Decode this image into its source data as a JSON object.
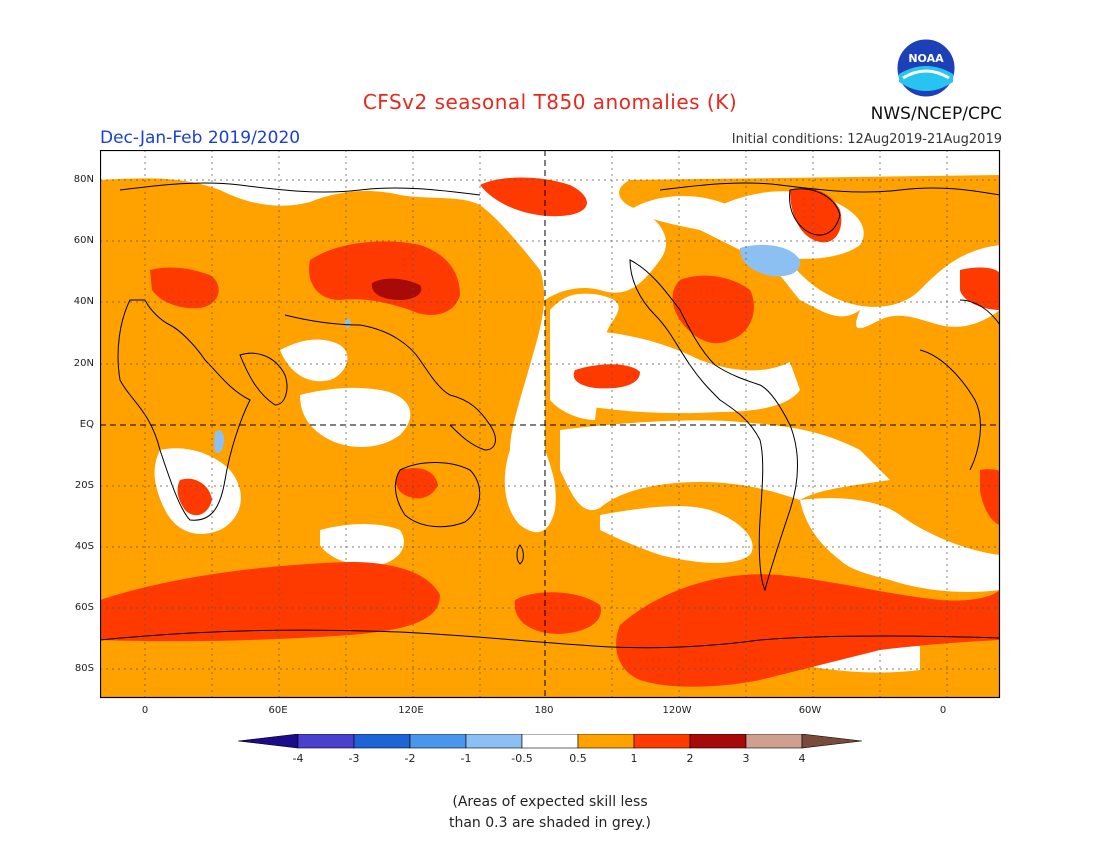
{
  "header": {
    "title": "CFSv2 seasonal T850 anomalies (K)",
    "period": "Dec-Jan-Feb 2019/2020",
    "initial_conditions": "Initial conditions: 12Aug2019-21Aug2019",
    "agency": "NWS/NCEP/CPC",
    "logo_text": "NOAA"
  },
  "axes": {
    "latitude_labels": [
      "80N",
      "60N",
      "40N",
      "20N",
      "EQ",
      "20S",
      "40S",
      "60S",
      "80S"
    ],
    "longitude_labels": [
      "0",
      "60E",
      "120E",
      "180",
      "120W",
      "60W",
      "0"
    ]
  },
  "colorbar": {
    "labels": [
      "-4",
      "-3",
      "-2",
      "-1",
      "-0.5",
      "0.5",
      "1",
      "2",
      "3",
      "4"
    ],
    "colors": [
      "#1b0c8a",
      "#4a3fcf",
      "#1f64d6",
      "#4a96ea",
      "#8cc0f2",
      "#ffffff",
      "#ffa200",
      "#ff3a00",
      "#a80a0a",
      "#cfa090",
      "#7a4a3a"
    ]
  },
  "legend_colors": {
    "neutral": "#ffffff",
    "warm_1": "#ffa200",
    "warm_2": "#ff3a00",
    "warm_3": "#a80a0a",
    "cool_1": "#8cc0f2"
  },
  "note": {
    "line1": "(Areas of expected skill less",
    "line2": "than 0.3 are shaded in grey.)"
  }
}
